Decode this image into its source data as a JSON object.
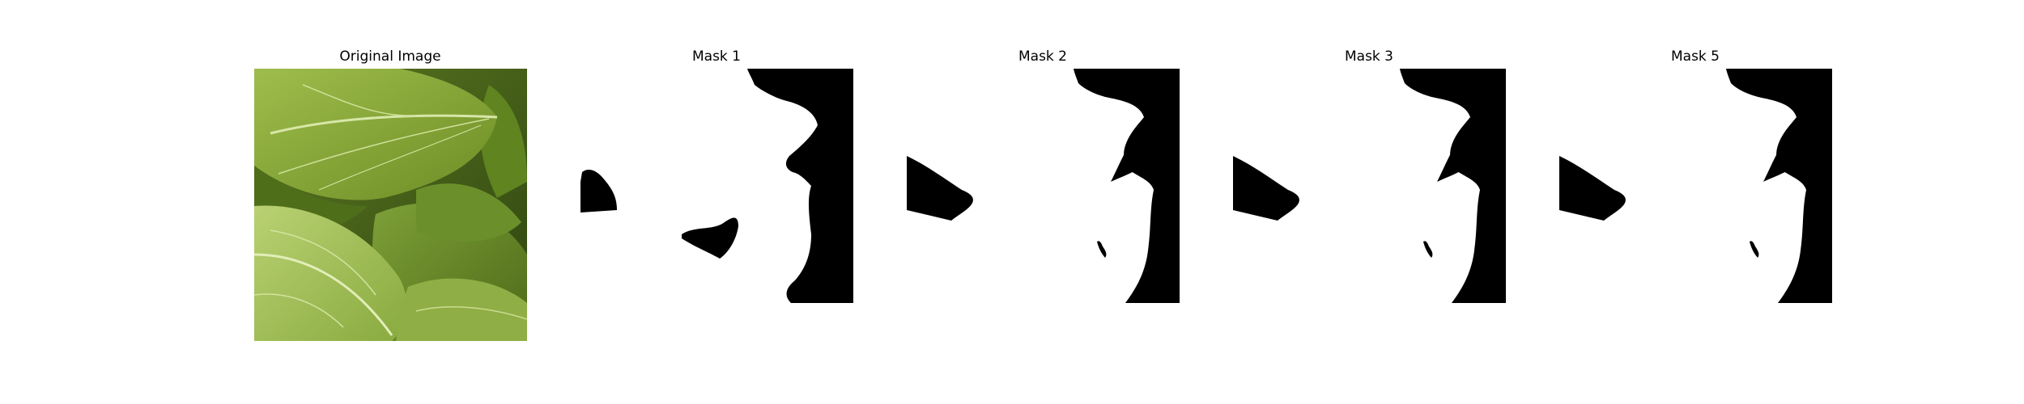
{
  "panels": [
    {
      "title": "Original Image",
      "kind": "photo",
      "subject": "green bok choy leaves, close-up"
    },
    {
      "title": "Mask 1",
      "kind": "mask"
    },
    {
      "title": "Mask 2",
      "kind": "mask"
    },
    {
      "title": "Mask 3",
      "kind": "mask"
    },
    {
      "title": "Mask 5",
      "kind": "mask"
    }
  ],
  "colors": {
    "background": "#ffffff",
    "mask_foreground": "#ffffff",
    "mask_background": "#000000",
    "leaf_dark": "#3f5a14",
    "leaf_mid": "#7f9f34",
    "leaf_light": "#b5cd6a"
  }
}
